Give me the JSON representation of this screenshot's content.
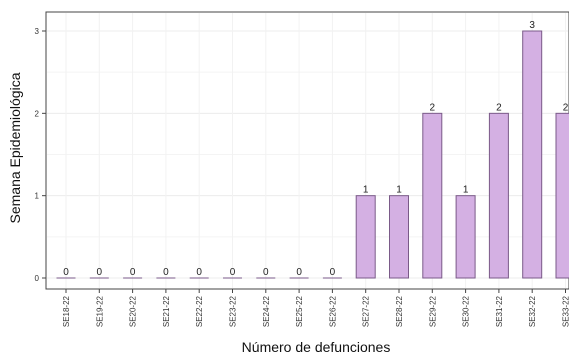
{
  "chart_data": {
    "type": "bar",
    "categories": [
      "SE18-22",
      "SE19-22",
      "SE20-22",
      "SE21-22",
      "SE22-22",
      "SE23-22",
      "SE24-22",
      "SE25-22",
      "SE26-22",
      "SE27-22",
      "SE28-22",
      "SE29-22",
      "SE30-22",
      "SE31-22",
      "SE32-22",
      "SE33-22"
    ],
    "values": [
      0,
      0,
      0,
      0,
      0,
      0,
      0,
      0,
      0,
      1,
      1,
      2,
      1,
      2,
      3,
      2
    ],
    "xlabel": "Número de defunciones",
    "ylabel": "Semana Epidemiológica",
    "ylim": [
      0,
      3
    ],
    "yticks": [
      0,
      1,
      2,
      3
    ],
    "grid": true,
    "legend": "none",
    "bar_color": "#d4b0e3",
    "bar_edge_color": "#7a5a88"
  }
}
